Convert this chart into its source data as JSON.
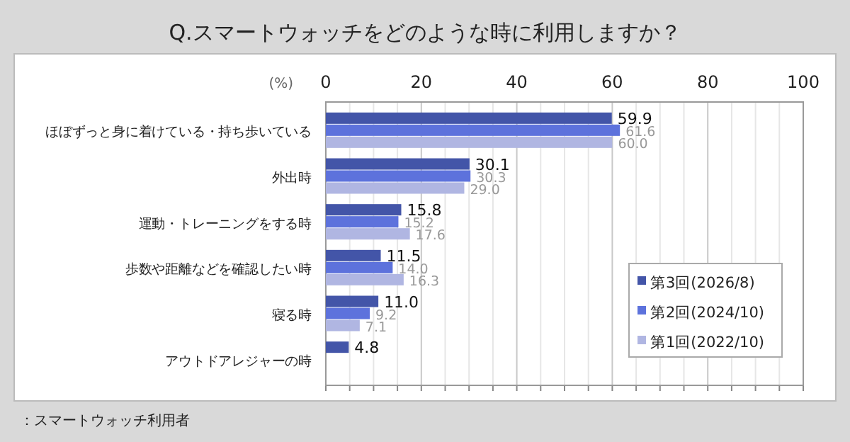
{
  "chart_data": {
    "type": "bar",
    "orientation": "horizontal",
    "title": "Q.スマートウォッチをどのような時に利用しますか？",
    "xlabel": "(%)",
    "categories": [
      "ほぼずっと身に着けている・持ち歩いている",
      "外出時",
      "運動・トレーニングをする時",
      "歩数や距離などを確認したい時",
      "寝る時",
      "アウトドアレジャーの時"
    ],
    "series": [
      {
        "name": "第3回(2026/8)",
        "color": "#4355a8",
        "values": [
          59.9,
          30.1,
          15.8,
          11.5,
          11.0,
          4.8
        ],
        "value_labels": [
          "59.9",
          "30.1",
          "15.8",
          "11.5",
          "11.0",
          "4.8"
        ]
      },
      {
        "name": "第2回(2024/10)",
        "color": "#5d72dc",
        "values": [
          61.6,
          30.3,
          15.2,
          14.0,
          9.2,
          null
        ],
        "value_labels": [
          "61.6",
          "30.3",
          "15.2",
          "14.0",
          "9.2",
          null
        ]
      },
      {
        "name": "第1回(2022/10)",
        "color": "#b0b6e2",
        "values": [
          60.0,
          29.0,
          17.6,
          16.3,
          7.1,
          null
        ],
        "value_labels": [
          "60.0",
          "29.0",
          "17.6",
          "16.3",
          "7.1",
          null
        ]
      }
    ],
    "xlim": [
      0,
      100
    ],
    "xticks": [
      0,
      {
        "value": 5,
        "label": null
      },
      {
        "value": 10,
        "label": null
      },
      {
        "value": 15,
        "label": null
      },
      20,
      {
        "value": 25,
        "label": null
      },
      {
        "value": 30,
        "label": null
      },
      {
        "value": 35,
        "label": null
      },
      40,
      {
        "value": 45,
        "label": null
      },
      {
        "value": 50,
        "label": null
      },
      {
        "value": 55,
        "label": null
      },
      60,
      {
        "value": 65,
        "label": null
      },
      {
        "value": 70,
        "label": null
      },
      {
        "value": 75,
        "label": null
      },
      80,
      {
        "value": 85,
        "label": null
      },
      {
        "value": 90,
        "label": null
      },
      {
        "value": 95,
        "label": null
      },
      100
    ],
    "grid": "x",
    "legend": "bottom right",
    "annotations": [
      "：スマートウォッチ利用者"
    ]
  }
}
